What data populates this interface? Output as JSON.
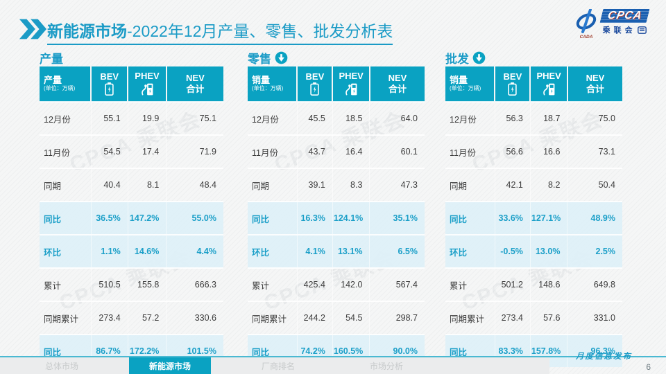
{
  "header": {
    "title_bold": "新能源市场",
    "title_rest": "-2022年12月产量、零售、批发分析表",
    "logo": {
      "swirl_caption": "CADA",
      "cpca": "CPCA",
      "association": "乘联会"
    }
  },
  "columns": {
    "unit": "(单位：万辆)",
    "bev": "BEV",
    "phev": "PHEV",
    "nev_line1": "NEV",
    "nev_line2": "合计"
  },
  "tables": [
    {
      "section_title": "产量",
      "corner_label": "产量",
      "has_down_arrow": false,
      "rows": [
        {
          "label": "12月份",
          "bev": "55.1",
          "phev": "19.9",
          "nev": "75.1",
          "highlight": false
        },
        {
          "label": "11月份",
          "bev": "54.5",
          "phev": "17.4",
          "nev": "71.9",
          "highlight": false
        },
        {
          "label": "同期",
          "bev": "40.4",
          "phev": "8.1",
          "nev": "48.4",
          "highlight": false
        },
        {
          "label": "同比",
          "bev": "36.5%",
          "phev": "147.2%",
          "nev": "55.0%",
          "highlight": true
        },
        {
          "label": "环比",
          "bev": "1.1%",
          "phev": "14.6%",
          "nev": "4.4%",
          "highlight": true
        },
        {
          "label": "累计",
          "bev": "510.5",
          "phev": "155.8",
          "nev": "666.3",
          "highlight": false
        },
        {
          "label": "同期累计",
          "bev": "273.4",
          "phev": "57.2",
          "nev": "330.6",
          "highlight": false
        },
        {
          "label": "同比",
          "bev": "86.7%",
          "phev": "172.2%",
          "nev": "101.5%",
          "highlight": true
        }
      ]
    },
    {
      "section_title": "零售",
      "corner_label": "销量",
      "has_down_arrow": true,
      "rows": [
        {
          "label": "12月份",
          "bev": "45.5",
          "phev": "18.5",
          "nev": "64.0",
          "highlight": false
        },
        {
          "label": "11月份",
          "bev": "43.7",
          "phev": "16.4",
          "nev": "60.1",
          "highlight": false
        },
        {
          "label": "同期",
          "bev": "39.1",
          "phev": "8.3",
          "nev": "47.3",
          "highlight": false
        },
        {
          "label": "同比",
          "bev": "16.3%",
          "phev": "124.1%",
          "nev": "35.1%",
          "highlight": true
        },
        {
          "label": "环比",
          "bev": "4.1%",
          "phev": "13.1%",
          "nev": "6.5%",
          "highlight": true
        },
        {
          "label": "累计",
          "bev": "425.4",
          "phev": "142.0",
          "nev": "567.4",
          "highlight": false
        },
        {
          "label": "同期累计",
          "bev": "244.2",
          "phev": "54.5",
          "nev": "298.7",
          "highlight": false
        },
        {
          "label": "同比",
          "bev": "74.2%",
          "phev": "160.5%",
          "nev": "90.0%",
          "highlight": true
        }
      ]
    },
    {
      "section_title": "批发",
      "corner_label": "销量",
      "has_down_arrow": true,
      "rows": [
        {
          "label": "12月份",
          "bev": "56.3",
          "phev": "18.7",
          "nev": "75.0",
          "highlight": false
        },
        {
          "label": "11月份",
          "bev": "56.6",
          "phev": "16.6",
          "nev": "73.1",
          "highlight": false
        },
        {
          "label": "同期",
          "bev": "42.1",
          "phev": "8.2",
          "nev": "50.4",
          "highlight": false
        },
        {
          "label": "同比",
          "bev": "33.6%",
          "phev": "127.1%",
          "nev": "48.9%",
          "highlight": true
        },
        {
          "label": "环比",
          "bev": "-0.5%",
          "phev": "13.0%",
          "nev": "2.5%",
          "highlight": true
        },
        {
          "label": "累计",
          "bev": "501.2",
          "phev": "148.6",
          "nev": "649.8",
          "highlight": false
        },
        {
          "label": "同期累计",
          "bev": "273.4",
          "phev": "57.6",
          "nev": "331.0",
          "highlight": false
        },
        {
          "label": "同比",
          "bev": "83.3%",
          "phev": "157.8%",
          "nev": "96.3%",
          "highlight": true
        }
      ]
    }
  ],
  "footer": {
    "nav": [
      {
        "label": "总体市场",
        "active": false
      },
      {
        "label": "新能源市场",
        "active": true
      },
      {
        "label": "厂商排名",
        "active": false
      },
      {
        "label": "市场分析",
        "active": false
      }
    ],
    "caption": "月度信息发布",
    "page_number": "6"
  },
  "colors": {
    "teal": "#0aa2c2",
    "teal_text": "#1b9fc8",
    "highlight_row": "#dff0f7",
    "logo_blue": "#1a5fb0"
  },
  "watermark": "CPCA 乘联会"
}
